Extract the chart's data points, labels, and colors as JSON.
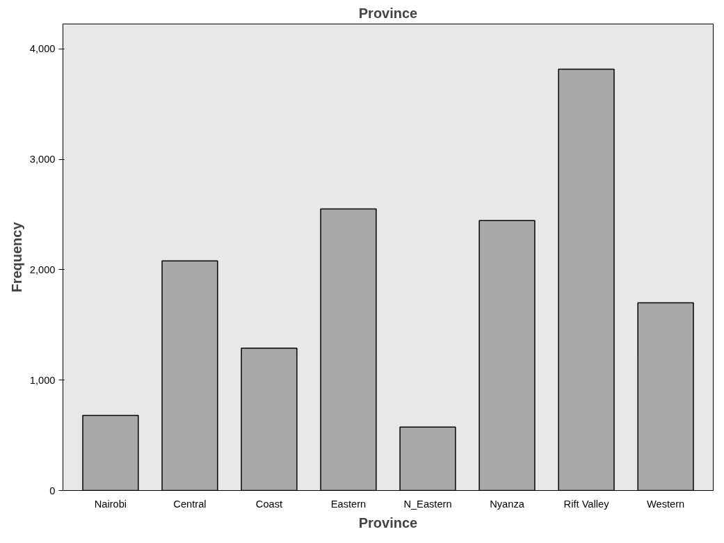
{
  "chart_data": {
    "type": "bar",
    "title": "Province",
    "xlabel": "Province",
    "ylabel": "Frequency",
    "categories": [
      "Nairobi",
      "Central",
      "Coast",
      "Eastern",
      "N_Eastern",
      "Nyanza",
      "Rift Valley",
      "Western"
    ],
    "values": [
      680,
      2080,
      1290,
      2550,
      575,
      2445,
      3815,
      1700
    ],
    "color": "#a9a9a9",
    "ylim": [
      0,
      4225
    ],
    "yticks": [
      0,
      {
        "value": 1000,
        "label": "1,000"
      },
      {
        "value": 2000,
        "label": "2,000"
      },
      {
        "value": 3000,
        "label": "3,000"
      },
      {
        "value": 4000,
        "label": "4,000"
      }
    ],
    "grid": false
  }
}
